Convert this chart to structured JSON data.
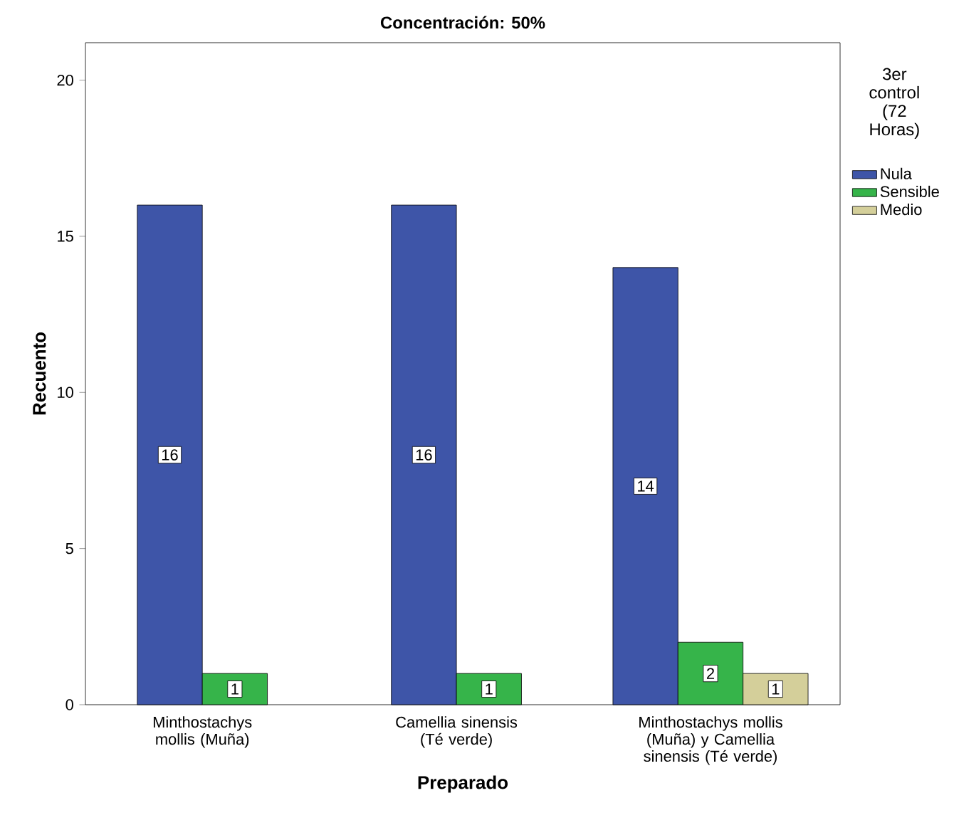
{
  "chart_data": {
    "type": "bar",
    "title": "Concentración: 50%",
    "xlabel": "Preparado",
    "ylabel": "Recuento",
    "legend_title": "3er control (72 Horas)",
    "categories": [
      "Minthostachys mollis (Muña)",
      "Camellia sinensis (Té verde)",
      "Minthostachys mollis (Muña) y Camellia sinensis (Té verde)"
    ],
    "series": [
      {
        "name": "Nula",
        "color": "#3e55a8",
        "values": [
          16,
          16,
          14
        ]
      },
      {
        "name": "Sensible",
        "color": "#36b44a",
        "values": [
          1,
          1,
          2
        ]
      },
      {
        "name": "Medio",
        "color": "#d4cf9a",
        "values": [
          null,
          null,
          1
        ]
      }
    ],
    "ylim": [
      0,
      21.2
    ],
    "yticks": [
      0,
      5,
      10,
      15,
      20
    ],
    "data_labels": true,
    "legend": "right"
  }
}
